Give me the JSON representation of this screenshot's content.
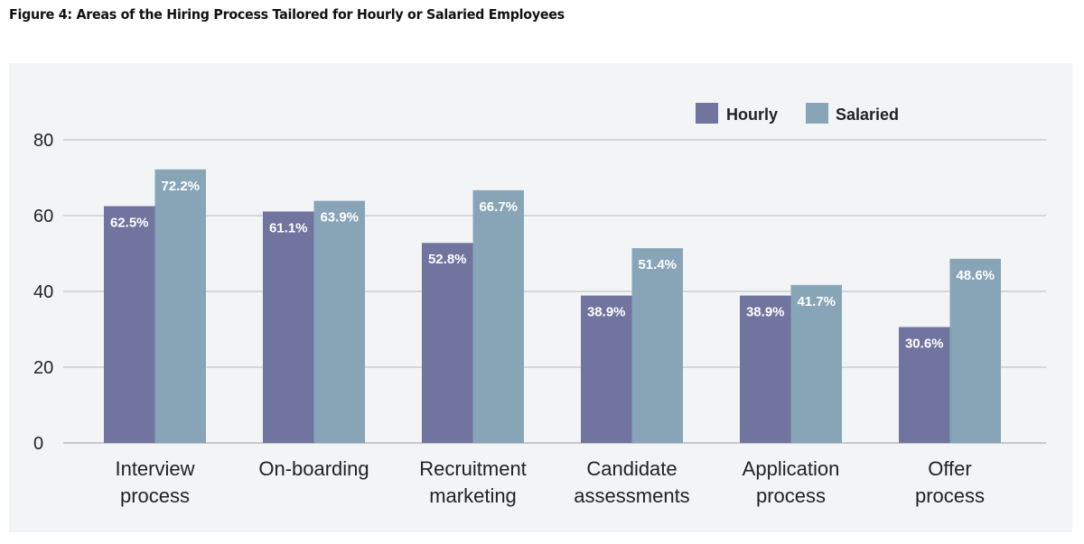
{
  "figure": {
    "title": "Figure 4: Areas of the Hiring Process Tailored for Hourly or Salaried Employees"
  },
  "chart_data": {
    "type": "bar",
    "title": "Figure 4: Areas of the Hiring Process Tailored for Hourly or Salaried Employees",
    "xlabel": "",
    "ylabel": "",
    "ylim": [
      0,
      80
    ],
    "yticks": [
      0,
      20,
      40,
      60,
      80
    ],
    "grid": true,
    "legend_position": "top-right",
    "categories": [
      [
        "Interview",
        "process"
      ],
      [
        "On-boarding"
      ],
      [
        "Recruitment",
        "marketing"
      ],
      [
        "Candidate",
        "assessments"
      ],
      [
        "Application",
        "process"
      ],
      [
        "Offer",
        "process"
      ]
    ],
    "series": [
      {
        "name": "Hourly",
        "color": "#7274a0",
        "values": [
          62.5,
          61.1,
          52.8,
          38.9,
          38.9,
          30.6
        ],
        "labels": [
          "62.5%",
          "61.1%",
          "52.8%",
          "38.9%",
          "38.9%",
          "30.6%"
        ]
      },
      {
        "name": "Salaried",
        "color": "#88a5b8",
        "values": [
          72.2,
          63.9,
          66.7,
          51.4,
          41.7,
          48.6
        ],
        "labels": [
          "72.2%",
          "63.9%",
          "66.7%",
          "51.4%",
          "41.7%",
          "48.6%"
        ]
      }
    ]
  }
}
